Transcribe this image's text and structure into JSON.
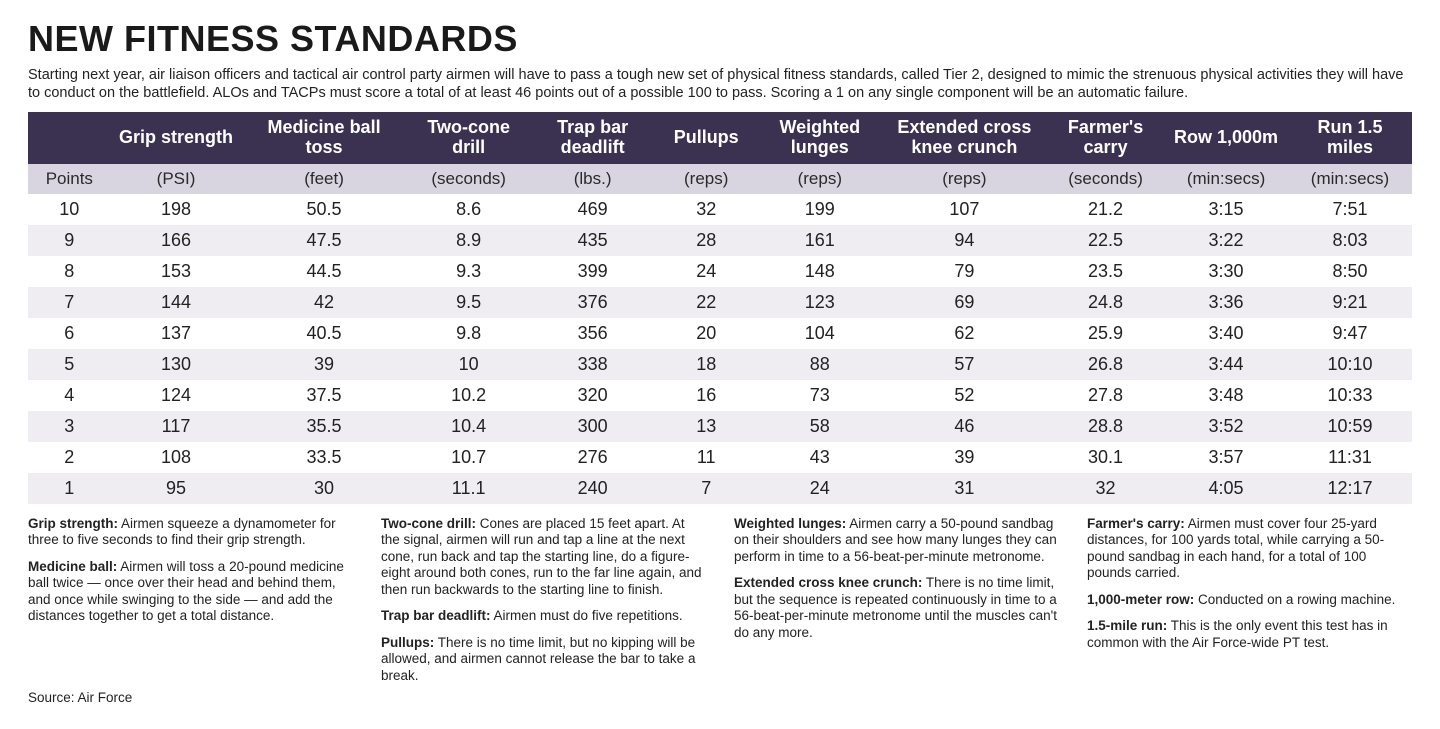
{
  "title": "NEW FITNESS STANDARDS",
  "intro": "Starting next year, air liaison officers and tactical air control party airmen will have to pass a tough new set of physical fitness standards, called Tier 2, designed to mimic the strenuous physical activities they will have to conduct on the battlefield. ALOs and TACPs must score a total of at least 46 points out of a possible 100 to pass. Scoring a 1 on any single component will be an automatic failure.",
  "colors": {
    "header_bg": "#3b3150",
    "header_text": "#ffffff",
    "units_bg": "#d9d5e0",
    "row_even_bg": "#efedf2",
    "row_odd_bg": "#ffffff",
    "page_bg": "#ffffff",
    "text": "#222222"
  },
  "table": {
    "type": "table",
    "points_label": "Points",
    "columns": [
      {
        "name": "Grip strength",
        "unit": "(PSI)"
      },
      {
        "name": "Medicine ball toss",
        "unit": "(feet)"
      },
      {
        "name": "Two-cone drill",
        "unit": "(seconds)"
      },
      {
        "name": "Trap bar deadlift",
        "unit": "(lbs.)"
      },
      {
        "name": "Pullups",
        "unit": "(reps)"
      },
      {
        "name": "Weighted lunges",
        "unit": "(reps)"
      },
      {
        "name": "Extended cross knee crunch",
        "unit": "(reps)"
      },
      {
        "name": "Farmer's carry",
        "unit": "(seconds)"
      },
      {
        "name": "Row 1,000m",
        "unit": "(min:secs)"
      },
      {
        "name": "Run 1.5 miles",
        "unit": "(min:secs)"
      }
    ],
    "rows": [
      {
        "points": "10",
        "v": [
          "198",
          "50.5",
          "8.6",
          "469",
          "32",
          "199",
          "107",
          "21.2",
          "3:15",
          "7:51"
        ]
      },
      {
        "points": "9",
        "v": [
          "166",
          "47.5",
          "8.9",
          "435",
          "28",
          "161",
          "94",
          "22.5",
          "3:22",
          "8:03"
        ]
      },
      {
        "points": "8",
        "v": [
          "153",
          "44.5",
          "9.3",
          "399",
          "24",
          "148",
          "79",
          "23.5",
          "3:30",
          "8:50"
        ]
      },
      {
        "points": "7",
        "v": [
          "144",
          "42",
          "9.5",
          "376",
          "22",
          "123",
          "69",
          "24.8",
          "3:36",
          "9:21"
        ]
      },
      {
        "points": "6",
        "v": [
          "137",
          "40.5",
          "9.8",
          "356",
          "20",
          "104",
          "62",
          "25.9",
          "3:40",
          "9:47"
        ]
      },
      {
        "points": "5",
        "v": [
          "130",
          "39",
          "10",
          "338",
          "18",
          "88",
          "57",
          "26.8",
          "3:44",
          "10:10"
        ]
      },
      {
        "points": "4",
        "v": [
          "124",
          "37.5",
          "10.2",
          "320",
          "16",
          "73",
          "52",
          "27.8",
          "3:48",
          "10:33"
        ]
      },
      {
        "points": "3",
        "v": [
          "117",
          "35.5",
          "10.4",
          "300",
          "13",
          "58",
          "46",
          "28.8",
          "3:52",
          "10:59"
        ]
      },
      {
        "points": "2",
        "v": [
          "108",
          "33.5",
          "10.7",
          "276",
          "11",
          "43",
          "39",
          "30.1",
          "3:57",
          "11:31"
        ]
      },
      {
        "points": "1",
        "v": [
          "95",
          "30",
          "11.1",
          "240",
          "7",
          "24",
          "31",
          "32",
          "4:05",
          "12:17"
        ]
      }
    ]
  },
  "descriptions": [
    {
      "label": "Grip strength:",
      "text": " Airmen squeeze a dynamometer for three to five seconds to find their grip strength."
    },
    {
      "label": "Medicine ball:",
      "text": " Airmen will toss a 20-pound medicine ball twice — once over their head and behind them, and once while swinging to the side — and add the distances together to get a total distance."
    },
    {
      "label": "Two-cone drill:",
      "text": " Cones are placed 15 feet apart. At the signal, airmen will run and tap a line at the next cone, run back and tap the starting line, do a figure-eight around both cones, run to the far line again, and then run backwards to the starting line to finish."
    },
    {
      "label": "Trap bar deadlift:",
      "text": " Airmen must do five repetitions."
    },
    {
      "label": "Pullups:",
      "text": " There is no time limit, but no kipping will be allowed, and airmen cannot release the bar to take a break."
    },
    {
      "label": "Weighted lunges:",
      "text": " Airmen carry a 50-pound sandbag on their shoulders and see how many lunges they can perform in time to a 56-beat-per-minute metronome."
    },
    {
      "label": "Extended cross knee crunch:",
      "text": " There is no time limit, but the sequence is repeated continuously in time to a 56-beat-per-minute metronome until the muscles can't do any more."
    },
    {
      "label": "Farmer's carry:",
      "text": " Airmen must cover four 25-yard distances, for 100 yards total, while carrying a 50-pound sandbag in each hand, for a total of 100 pounds carried."
    },
    {
      "label": "1,000-meter row:",
      "text": " Conducted on a rowing machine."
    },
    {
      "label": "1.5-mile run:",
      "text": " This is the only event this test has in common with the Air Force-wide PT test."
    }
  ],
  "source": "Source: Air Force"
}
